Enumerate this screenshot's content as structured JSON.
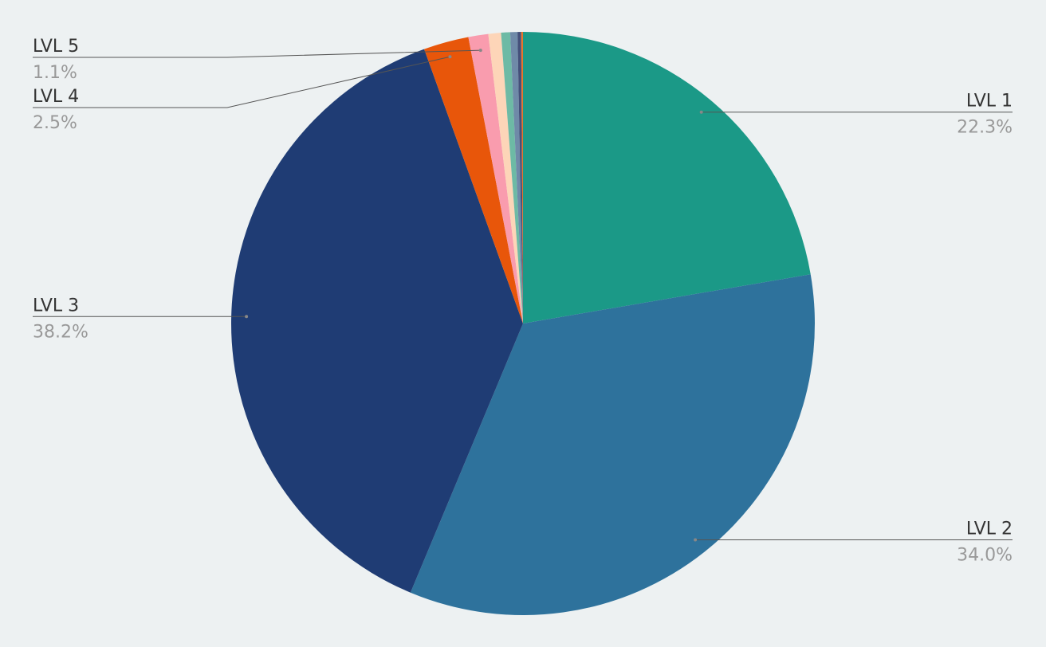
{
  "chart_data": {
    "type": "pie",
    "categories": [
      "LVL 1",
      "LVL 2",
      "LVL 3",
      "LVL 4",
      "LVL 5",
      null,
      null,
      null,
      null,
      null
    ],
    "values": [
      22.3,
      34.0,
      38.2,
      2.5,
      1.1,
      0.7,
      0.5,
      0.4,
      0.2,
      0.1
    ],
    "value_labels": [
      "22.3%",
      "34.0%",
      "38.2%",
      "2.5%",
      "1.1%",
      null,
      null,
      null,
      null,
      null
    ],
    "colors": [
      "#1b9987",
      "#2e729c",
      "#1f3c74",
      "#e8560a",
      "#f99cae",
      "#fdd5b8",
      "#6dbaa5",
      "#6f8aa8",
      "#44507a",
      "#e8752a"
    ]
  }
}
